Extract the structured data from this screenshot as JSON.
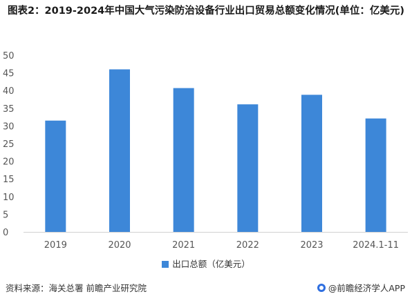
{
  "title": "图表2：2019-2024年中国大气污染防治设备行业出口贸易总额变化情况(单位：亿美元)",
  "chart_data": {
    "type": "bar",
    "categories": [
      "2019",
      "2020",
      "2021",
      "2022",
      "2023",
      "2024.1-11"
    ],
    "series": [
      {
        "name": "出口总额（亿美元）",
        "values": [
          31.5,
          46.0,
          40.7,
          36.1,
          38.8,
          32.1
        ]
      }
    ],
    "ylim": [
      0,
      50
    ],
    "yticks": [
      0,
      5,
      10,
      15,
      20,
      25,
      30,
      35,
      40,
      45,
      50
    ],
    "grid": false,
    "legend_position": "bottom",
    "colors": {
      "bar": "#3d87d8",
      "axis": "#d0d0d0"
    }
  },
  "legend": {
    "label": "出口总额（亿美元）"
  },
  "footer": {
    "source": "资料来源：海关总署 前瞻产业研究院",
    "brand": "@前瞻经济学人APP"
  }
}
